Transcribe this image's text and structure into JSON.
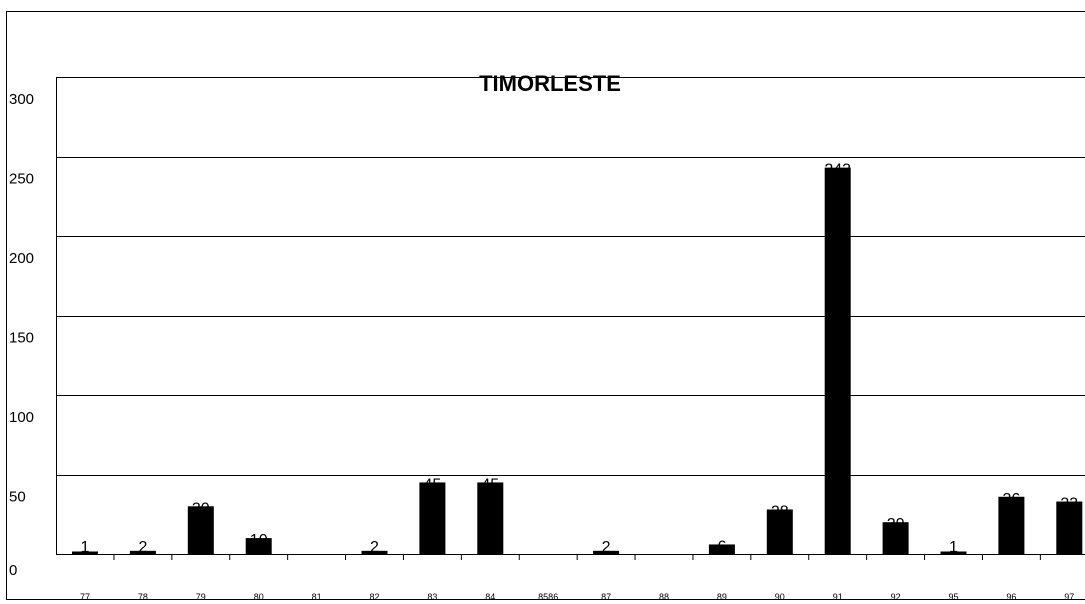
{
  "chart_data": {
    "type": "bar",
    "title": "TIMORLESTE",
    "xlabel": "",
    "ylabel": "",
    "ylim": [
      0,
      300
    ],
    "yticks": [
      0,
      50,
      100,
      150,
      200,
      250,
      300
    ],
    "grid": true,
    "bar_color": "#000000",
    "categories": [
      "77",
      "78",
      "79",
      "80",
      "81",
      "82",
      "83",
      "84",
      "8586",
      "87",
      "88",
      "89",
      "90",
      "91",
      "92",
      "95",
      "96",
      "97"
    ],
    "values": [
      1,
      2,
      30,
      10,
      0,
      2,
      45,
      45,
      0,
      2,
      0,
      6,
      28,
      243,
      20,
      1,
      36,
      33
    ],
    "data_labels": [
      "1",
      "2",
      "30",
      "10",
      "",
      "2",
      "45",
      "45",
      "",
      "2",
      "",
      "6",
      "28",
      "243",
      "20",
      "1",
      "36",
      "33"
    ]
  }
}
